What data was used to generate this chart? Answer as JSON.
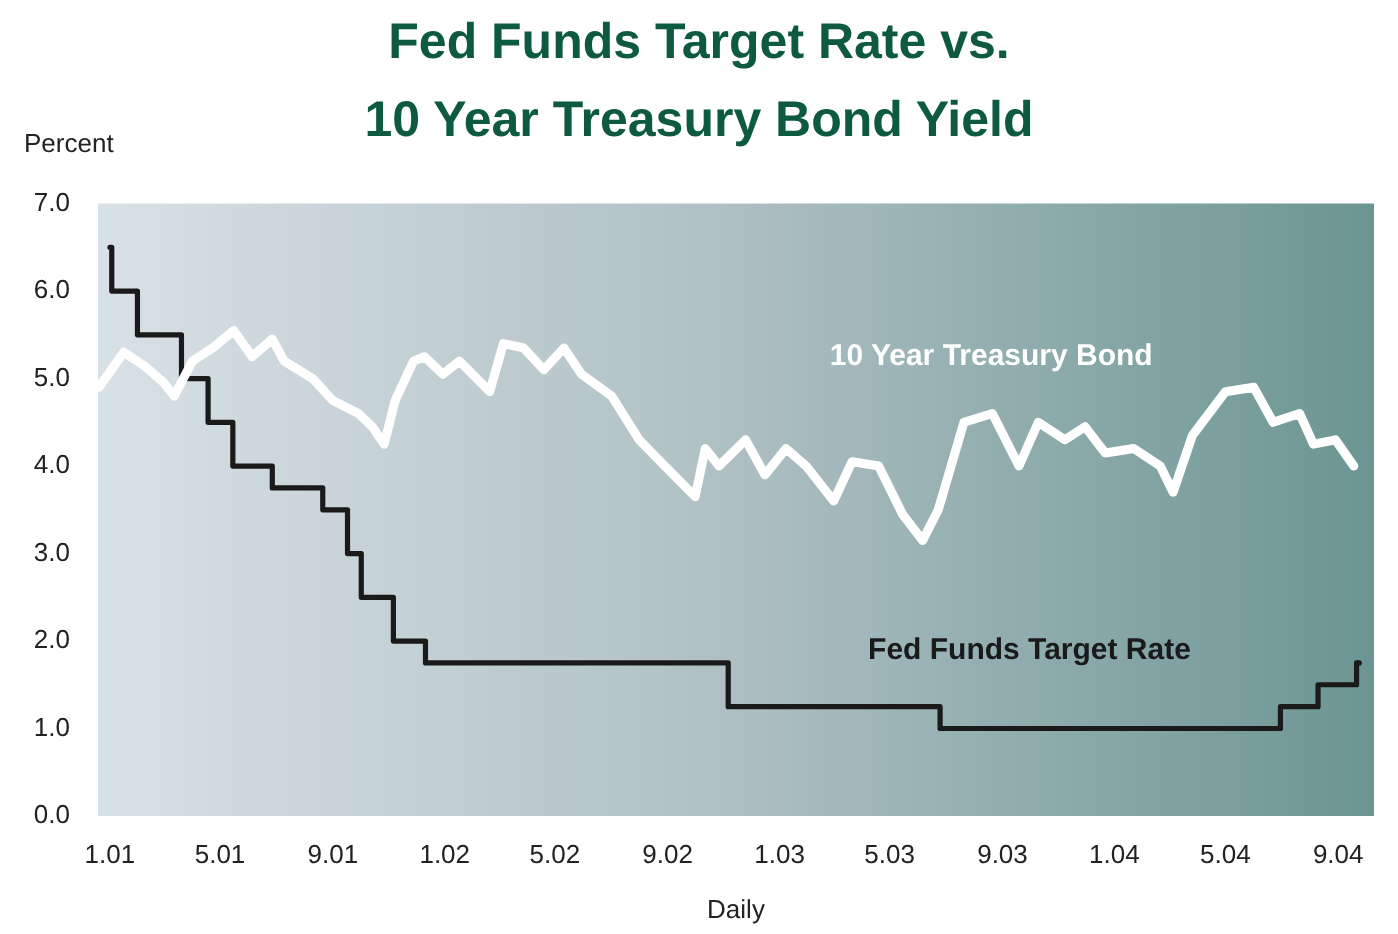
{
  "chart_data": {
    "type": "line",
    "title": "Fed Funds Target Rate vs.\n10 Year Treasury Bond Yield",
    "xlabel": "Daily",
    "ylabel": "Percent",
    "xlim": [
      "2000-12-19",
      "2004-10-10"
    ],
    "xticks": [
      {
        "value": "2001-01-01",
        "label": "1.01"
      },
      {
        "value": "2001-05-01",
        "label": "5.01"
      },
      {
        "value": "2001-09-01",
        "label": "9.01"
      },
      {
        "value": "2002-01-01",
        "label": "1.02"
      },
      {
        "value": "2002-05-01",
        "label": "5.02"
      },
      {
        "value": "2002-09-01",
        "label": "9.02"
      },
      {
        "value": "2003-01-01",
        "label": "1.03"
      },
      {
        "value": "2003-05-01",
        "label": "5.03"
      },
      {
        "value": "2003-09-01",
        "label": "9.03"
      },
      {
        "value": "2004-01-01",
        "label": "1.04"
      },
      {
        "value": "2004-05-01",
        "label": "5.04"
      },
      {
        "value": "2004-09-01",
        "label": "9.04"
      }
    ],
    "ylim": [
      0,
      7
    ],
    "yticks": [
      {
        "value": 0,
        "label": "0.0"
      },
      {
        "value": 1,
        "label": "1.0"
      },
      {
        "value": 2,
        "label": "2.0"
      },
      {
        "value": 3,
        "label": "3.0"
      },
      {
        "value": 4,
        "label": "4.0"
      },
      {
        "value": 5,
        "label": "5.0"
      },
      {
        "value": 6,
        "label": "6.0"
      },
      {
        "value": 7,
        "label": "7.0"
      }
    ],
    "grid": false,
    "legend": false,
    "marker": "none",
    "series": [
      {
        "name": "10 Year Treasury Bond",
        "color": "#ffffff",
        "type": "line",
        "x": [
          "2000-12-20",
          "2001-01-16",
          "2001-02-07",
          "2001-03-01",
          "2001-03-12",
          "2001-04-01",
          "2001-04-23",
          "2001-05-16",
          "2001-06-05",
          "2001-06-27",
          "2001-07-10",
          "2001-08-10",
          "2001-09-01",
          "2001-09-29",
          "2001-10-14",
          "2001-10-27",
          "2001-11-08",
          "2001-11-28",
          "2001-12-10",
          "2001-12-30",
          "2002-01-17",
          "2002-02-19",
          "2002-03-06",
          "2002-03-28",
          "2002-04-19",
          "2002-05-11",
          "2002-05-30",
          "2002-07-02",
          "2002-08-01",
          "2002-08-29",
          "2002-10-01",
          "2002-10-12",
          "2002-10-27",
          "2002-11-25",
          "2002-12-16",
          "2003-01-08",
          "2003-01-30",
          "2003-03-01",
          "2003-03-21",
          "2003-04-19",
          "2003-05-15",
          "2003-06-06",
          "2003-06-23",
          "2003-07-21",
          "2003-08-21",
          "2003-09-19",
          "2003-10-10",
          "2003-11-08",
          "2003-11-30",
          "2003-12-22",
          "2004-01-22",
          "2004-02-20",
          "2004-03-05",
          "2004-03-26",
          "2004-05-01",
          "2004-06-01",
          "2004-06-22",
          "2004-07-21",
          "2004-08-05",
          "2004-08-29",
          "2004-09-18"
        ],
        "values": [
          4.9,
          5.3,
          5.15,
          4.95,
          4.8,
          5.2,
          5.35,
          5.55,
          5.25,
          5.45,
          5.2,
          5.0,
          4.75,
          4.6,
          4.45,
          4.25,
          4.75,
          5.2,
          5.25,
          5.05,
          5.2,
          4.85,
          5.4,
          5.35,
          5.1,
          5.35,
          5.05,
          4.8,
          4.3,
          4.0,
          3.65,
          4.2,
          4.0,
          4.3,
          3.9,
          4.2,
          4.0,
          3.6,
          4.05,
          4.0,
          3.45,
          3.15,
          3.5,
          4.5,
          4.6,
          4.0,
          4.5,
          4.3,
          4.45,
          4.15,
          4.2,
          4.0,
          3.7,
          4.35,
          4.85,
          4.9,
          4.5,
          4.6,
          4.25,
          4.3,
          4.0
        ]
      },
      {
        "name": "Fed Funds Target Rate",
        "color": "#1a1a1a",
        "type": "step",
        "x": [
          "2001-01-01",
          "2001-01-03",
          "2001-01-31",
          "2001-03-20",
          "2001-04-18",
          "2001-05-15",
          "2001-06-27",
          "2001-08-21",
          "2001-09-17",
          "2001-10-02",
          "2001-11-06",
          "2001-12-11",
          "2002-11-06",
          "2003-06-25",
          "2004-06-30",
          "2004-08-10",
          "2004-09-21",
          "2004-09-24"
        ],
        "values": [
          6.5,
          6.0,
          5.5,
          5.0,
          4.5,
          4.0,
          3.75,
          3.5,
          3.0,
          2.5,
          2.0,
          1.75,
          1.25,
          1.0,
          1.25,
          1.5,
          1.75,
          1.75
        ]
      }
    ]
  }
}
